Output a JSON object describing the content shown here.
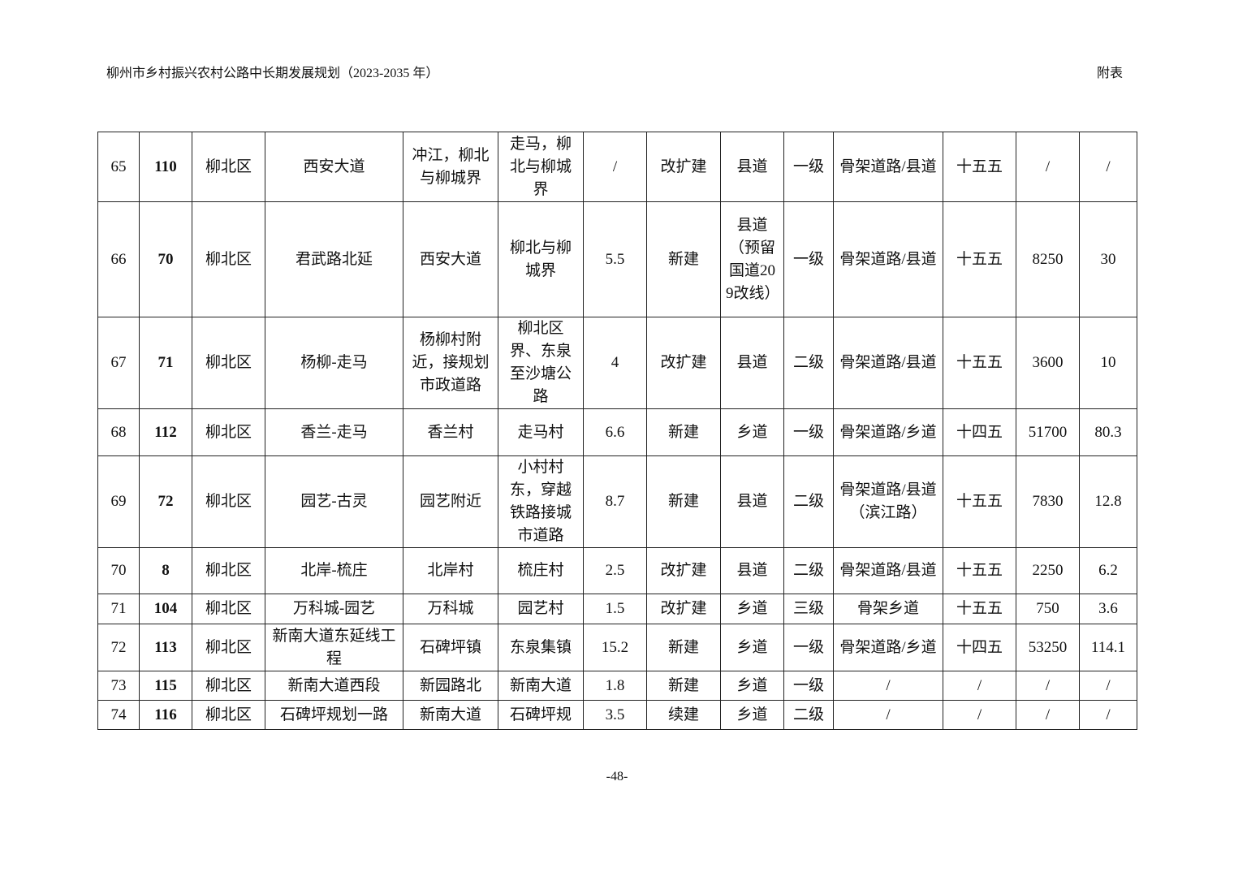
{
  "header": {
    "title": "柳州市乡村振兴农村公路中长期发展规划（2023-2035 年）",
    "section": "附表"
  },
  "footer": {
    "page": "-48-"
  },
  "table": {
    "rows": [
      [
        "65",
        "110",
        "柳北区",
        "西安大道",
        "冲江，柳北与柳城界",
        "走马，柳北与柳城界",
        "/",
        "改扩建",
        "县道",
        "一级",
        "骨架道路/县道",
        "十五五",
        "/",
        "/"
      ],
      [
        "66",
        "70",
        "柳北区",
        "君武路北延",
        "西安大道",
        "柳北与柳城界",
        "5.5",
        "新建",
        "县道（预留国道209改线）",
        "一级",
        "骨架道路/县道",
        "十五五",
        "8250",
        "30"
      ],
      [
        "67",
        "71",
        "柳北区",
        "杨柳-走马",
        "杨柳村附近，接规划市政道路",
        "柳北区界、东泉至沙塘公路",
        "4",
        "改扩建",
        "县道",
        "二级",
        "骨架道路/县道",
        "十五五",
        "3600",
        "10"
      ],
      [
        "68",
        "112",
        "柳北区",
        "香兰-走马",
        "香兰村",
        "走马村",
        "6.6",
        "新建",
        "乡道",
        "一级",
        "骨架道路/乡道",
        "十四五",
        "51700",
        "80.3"
      ],
      [
        "69",
        "72",
        "柳北区",
        "园艺-古灵",
        "园艺附近",
        "小村村东，穿越铁路接城市道路",
        "8.7",
        "新建",
        "县道",
        "二级",
        "骨架道路/县道（滨江路）",
        "十五五",
        "7830",
        "12.8"
      ],
      [
        "70",
        "8",
        "柳北区",
        "北岸-梳庄",
        "北岸村",
        "梳庄村",
        "2.5",
        "改扩建",
        "县道",
        "二级",
        "骨架道路/县道",
        "十五五",
        "2250",
        "6.2"
      ],
      [
        "71",
        "104",
        "柳北区",
        "万科城-园艺",
        "万科城",
        "园艺村",
        "1.5",
        "改扩建",
        "乡道",
        "三级",
        "骨架乡道",
        "十五五",
        "750",
        "3.6"
      ],
      [
        "72",
        "113",
        "柳北区",
        "新南大道东延线工程",
        "石碑坪镇",
        "东泉集镇",
        "15.2",
        "新建",
        "乡道",
        "一级",
        "骨架道路/乡道",
        "十四五",
        "53250",
        "114.1"
      ],
      [
        "73",
        "115",
        "柳北区",
        "新南大道西段",
        "新园路北",
        "新南大道",
        "1.8",
        "新建",
        "乡道",
        "一级",
        "/",
        "/",
        "/",
        "/"
      ],
      [
        "74",
        "116",
        "柳北区",
        "石碑坪规划一路",
        "新南大道",
        "石碑坪规",
        "3.5",
        "续建",
        "乡道",
        "二级",
        "/",
        "/",
        "/",
        "/"
      ]
    ]
  }
}
